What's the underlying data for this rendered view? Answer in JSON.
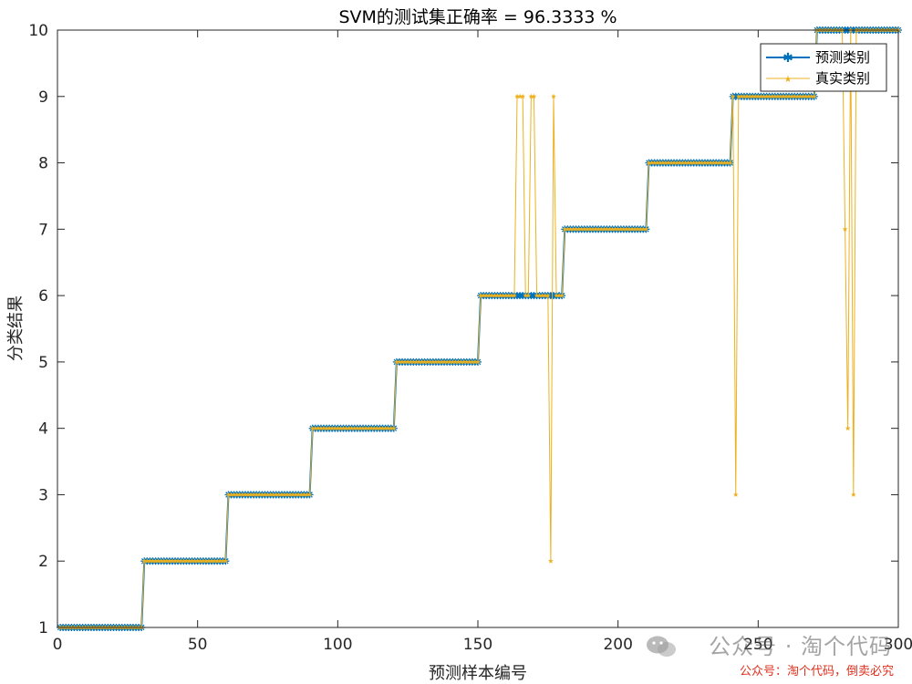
{
  "chart_data": {
    "type": "line",
    "title": "SVM的测试集正确率 = 96.3333 %",
    "xlabel": "预测样本编号",
    "ylabel": "分类结果",
    "xlim": [
      0,
      300
    ],
    "ylim": [
      1,
      10
    ],
    "xticks": [
      0,
      50,
      100,
      150,
      200,
      250,
      300
    ],
    "yticks": [
      1,
      2,
      3,
      4,
      5,
      6,
      7,
      8,
      9,
      10
    ],
    "grid": false,
    "legend_position": "top-right",
    "n_samples": 300,
    "class_size": 30,
    "series": [
      {
        "name": "预测类别",
        "color": "#0072BD",
        "marker": "asterisk",
        "values_rule": "class ceil(i/30) for sample i, except overrides",
        "overrides": {}
      },
      {
        "name": "真实类别",
        "color": "#EDB120",
        "marker": "star",
        "values_rule": "class ceil(i/30) for sample i, except overrides",
        "overrides": {
          "164": 9,
          "165": 9,
          "166": 9,
          "169": 9,
          "170": 9,
          "176": 2,
          "177": 9,
          "242": 3,
          "281": 7,
          "282": 4,
          "284": 3
        }
      }
    ]
  },
  "watermark": {
    "main": "公众号 · 淘个代码",
    "sub": "公众号：淘个代码，倒卖必究"
  }
}
